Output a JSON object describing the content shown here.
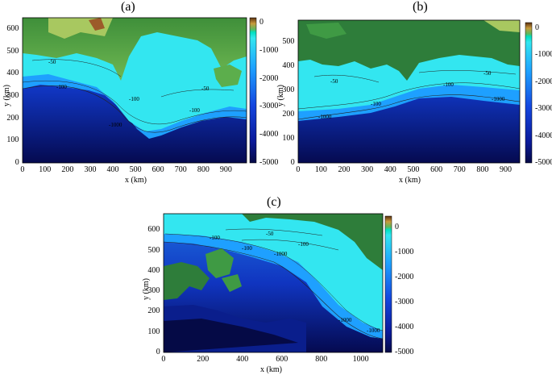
{
  "figure": {
    "panels": [
      {
        "label": "(a)",
        "x_title": "x (km)",
        "y_title": "y (km)",
        "x_ticks": [
          "0",
          "100",
          "200",
          "300",
          "400",
          "500",
          "600",
          "700",
          "800",
          "900"
        ],
        "y_ticks": [
          "0",
          "100",
          "200",
          "300",
          "400",
          "500",
          "600"
        ],
        "colorbar_ticks": [
          "0",
          "-1000",
          "-2000",
          "-3000",
          "-4000",
          "-5000"
        ],
        "contour_labels": [
          "-50",
          "-100",
          "-100",
          "-100",
          "-1000",
          "-50"
        ]
      },
      {
        "label": "(b)",
        "x_title": "x (km)",
        "y_title": "y (km)",
        "x_ticks": [
          "0",
          "100",
          "200",
          "300",
          "400",
          "500",
          "600",
          "700",
          "800",
          "900"
        ],
        "y_ticks": [
          "0",
          "100",
          "200",
          "300",
          "400",
          "500"
        ],
        "colorbar_ticks": [
          "0",
          "-1000",
          "-2000",
          "-3000",
          "-4000",
          "-5000"
        ],
        "contour_labels": [
          "-50",
          "-100",
          "-1000",
          "-100",
          "-1000",
          "-50"
        ]
      },
      {
        "label": "(c)",
        "x_title": "x (km)",
        "y_title": "y (km)",
        "x_ticks": [
          "0",
          "200",
          "400",
          "600",
          "800",
          "1000"
        ],
        "y_ticks": [
          "0",
          "100",
          "200",
          "300",
          "400",
          "500",
          "600"
        ],
        "colorbar_ticks": [
          "0",
          "-1000",
          "-2000",
          "-3000",
          "-4000",
          "-5000"
        ],
        "contour_labels": [
          "-100",
          "-50",
          "-100",
          "-1000",
          "-1000",
          "-1000",
          "-100"
        ]
      }
    ],
    "colors": {
      "land_dark": "#2e7d3a",
      "land_light": "#7fbf5a",
      "land_high": "#a0522d",
      "shelf": "#33e6f0",
      "slope": "#1e90ff",
      "deep": "#0a1e8c",
      "abyss": "#050a46"
    }
  }
}
